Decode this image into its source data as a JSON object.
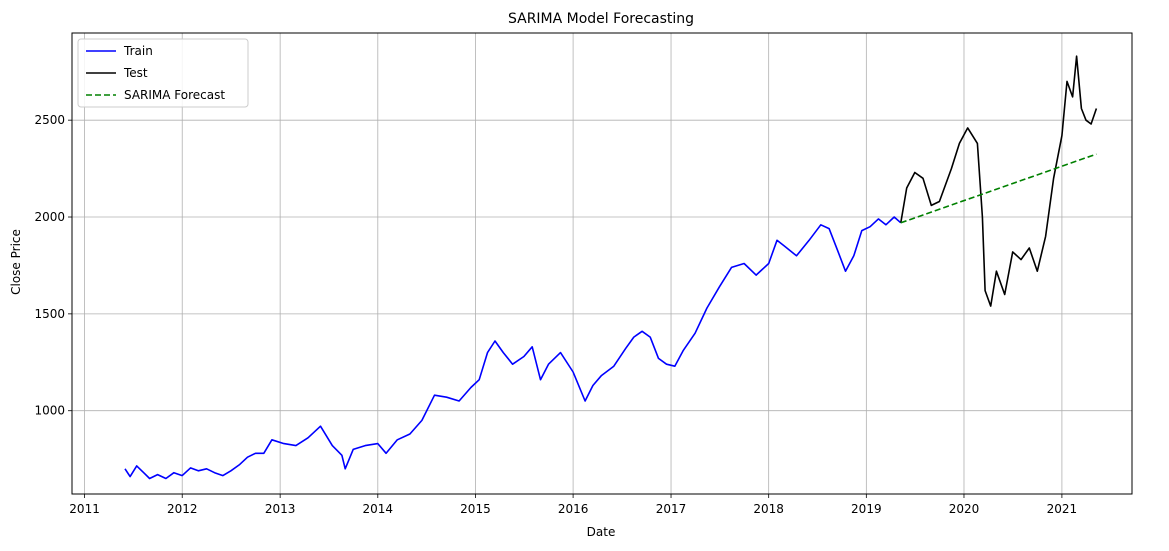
{
  "chart_data": {
    "type": "line",
    "title": "SARIMA Model Forecasting",
    "xlabel": "Date",
    "ylabel": "Close Price",
    "xlim": [
      "2010-11-15",
      "2021-09-20"
    ],
    "ylim": [
      570,
      2950
    ],
    "x_ticks": [
      "2011",
      "2012",
      "2013",
      "2014",
      "2015",
      "2016",
      "2017",
      "2018",
      "2019",
      "2020",
      "2021"
    ],
    "y_ticks": [
      1000,
      1500,
      2000,
      2500
    ],
    "grid": true,
    "legend_position": "upper-left",
    "series": [
      {
        "name": "Train",
        "color": "#0000ff",
        "style": "solid",
        "points": [
          [
            "2011-06-01",
            700
          ],
          [
            "2011-06-20",
            660
          ],
          [
            "2011-07-15",
            715
          ],
          [
            "2011-08-10",
            680
          ],
          [
            "2011-09-01",
            650
          ],
          [
            "2011-10-01",
            670
          ],
          [
            "2011-11-01",
            650
          ],
          [
            "2011-12-01",
            680
          ],
          [
            "2012-01-01",
            665
          ],
          [
            "2012-02-01",
            705
          ],
          [
            "2012-03-01",
            690
          ],
          [
            "2012-04-01",
            700
          ],
          [
            "2012-05-01",
            680
          ],
          [
            "2012-06-01",
            665
          ],
          [
            "2012-07-01",
            690
          ],
          [
            "2012-08-01",
            720
          ],
          [
            "2012-09-01",
            760
          ],
          [
            "2012-10-01",
            780
          ],
          [
            "2012-11-01",
            780
          ],
          [
            "2012-12-01",
            850
          ],
          [
            "2013-01-15",
            830
          ],
          [
            "2013-03-01",
            820
          ],
          [
            "2013-04-15",
            860
          ],
          [
            "2013-06-01",
            920
          ],
          [
            "2013-07-15",
            820
          ],
          [
            "2013-08-20",
            770
          ],
          [
            "2013-09-01",
            700
          ],
          [
            "2013-10-01",
            800
          ],
          [
            "2013-11-15",
            820
          ],
          [
            "2014-01-01",
            830
          ],
          [
            "2014-02-01",
            780
          ],
          [
            "2014-03-15",
            850
          ],
          [
            "2014-05-01",
            880
          ],
          [
            "2014-06-15",
            950
          ],
          [
            "2014-08-01",
            1080
          ],
          [
            "2014-09-15",
            1070
          ],
          [
            "2014-11-01",
            1050
          ],
          [
            "2014-12-15",
            1120
          ],
          [
            "2015-01-15",
            1160
          ],
          [
            "2015-02-15",
            1300
          ],
          [
            "2015-03-15",
            1360
          ],
          [
            "2015-04-15",
            1300
          ],
          [
            "2015-05-20",
            1240
          ],
          [
            "2015-07-01",
            1280
          ],
          [
            "2015-08-01",
            1330
          ],
          [
            "2015-09-01",
            1160
          ],
          [
            "2015-10-01",
            1240
          ],
          [
            "2015-11-15",
            1300
          ],
          [
            "2016-01-01",
            1200
          ],
          [
            "2016-02-15",
            1050
          ],
          [
            "2016-03-15",
            1130
          ],
          [
            "2016-04-15",
            1180
          ],
          [
            "2016-06-01",
            1230
          ],
          [
            "2016-07-15",
            1320
          ],
          [
            "2016-08-15",
            1380
          ],
          [
            "2016-09-15",
            1410
          ],
          [
            "2016-10-15",
            1380
          ],
          [
            "2016-11-15",
            1270
          ],
          [
            "2016-12-15",
            1240
          ],
          [
            "2017-01-15",
            1230
          ],
          [
            "2017-02-15",
            1310
          ],
          [
            "2017-04-01",
            1400
          ],
          [
            "2017-05-15",
            1530
          ],
          [
            "2017-07-01",
            1640
          ],
          [
            "2017-08-15",
            1740
          ],
          [
            "2017-10-01",
            1760
          ],
          [
            "2017-11-15",
            1700
          ],
          [
            "2018-01-01",
            1760
          ],
          [
            "2018-02-01",
            1880
          ],
          [
            "2018-03-01",
            1850
          ],
          [
            "2018-04-15",
            1800
          ],
          [
            "2018-06-01",
            1880
          ],
          [
            "2018-07-15",
            1960
          ],
          [
            "2018-08-15",
            1940
          ],
          [
            "2018-09-15",
            1830
          ],
          [
            "2018-10-15",
            1720
          ],
          [
            "2018-11-15",
            1800
          ],
          [
            "2018-12-15",
            1930
          ],
          [
            "2019-01-15",
            1950
          ],
          [
            "2019-02-15",
            1990
          ],
          [
            "2019-03-15",
            1960
          ],
          [
            "2019-04-15",
            2000
          ],
          [
            "2019-05-10",
            1970
          ]
        ]
      },
      {
        "name": "Test",
        "color": "#000000",
        "style": "solid",
        "points": [
          [
            "2019-05-10",
            1970
          ],
          [
            "2019-06-01",
            2150
          ],
          [
            "2019-07-01",
            2230
          ],
          [
            "2019-08-01",
            2200
          ],
          [
            "2019-09-01",
            2060
          ],
          [
            "2019-10-01",
            2080
          ],
          [
            "2019-11-15",
            2250
          ],
          [
            "2019-12-15",
            2380
          ],
          [
            "2020-01-15",
            2460
          ],
          [
            "2020-02-20",
            2380
          ],
          [
            "2020-03-10",
            2000
          ],
          [
            "2020-03-20",
            1620
          ],
          [
            "2020-04-10",
            1540
          ],
          [
            "2020-05-01",
            1720
          ],
          [
            "2020-06-01",
            1600
          ],
          [
            "2020-07-01",
            1820
          ],
          [
            "2020-08-01",
            1780
          ],
          [
            "2020-09-01",
            1840
          ],
          [
            "2020-10-01",
            1720
          ],
          [
            "2020-11-01",
            1900
          ],
          [
            "2020-12-01",
            2200
          ],
          [
            "2021-01-01",
            2420
          ],
          [
            "2021-01-20",
            2700
          ],
          [
            "2021-02-10",
            2620
          ],
          [
            "2021-02-25",
            2830
          ],
          [
            "2021-03-15",
            2560
          ],
          [
            "2021-04-01",
            2500
          ],
          [
            "2021-04-20",
            2480
          ],
          [
            "2021-05-10",
            2560
          ]
        ]
      },
      {
        "name": "SARIMA Forecast",
        "color": "#008000",
        "style": "dashed",
        "points": [
          [
            "2019-05-10",
            1970
          ],
          [
            "2021-05-10",
            2325
          ]
        ]
      }
    ]
  }
}
